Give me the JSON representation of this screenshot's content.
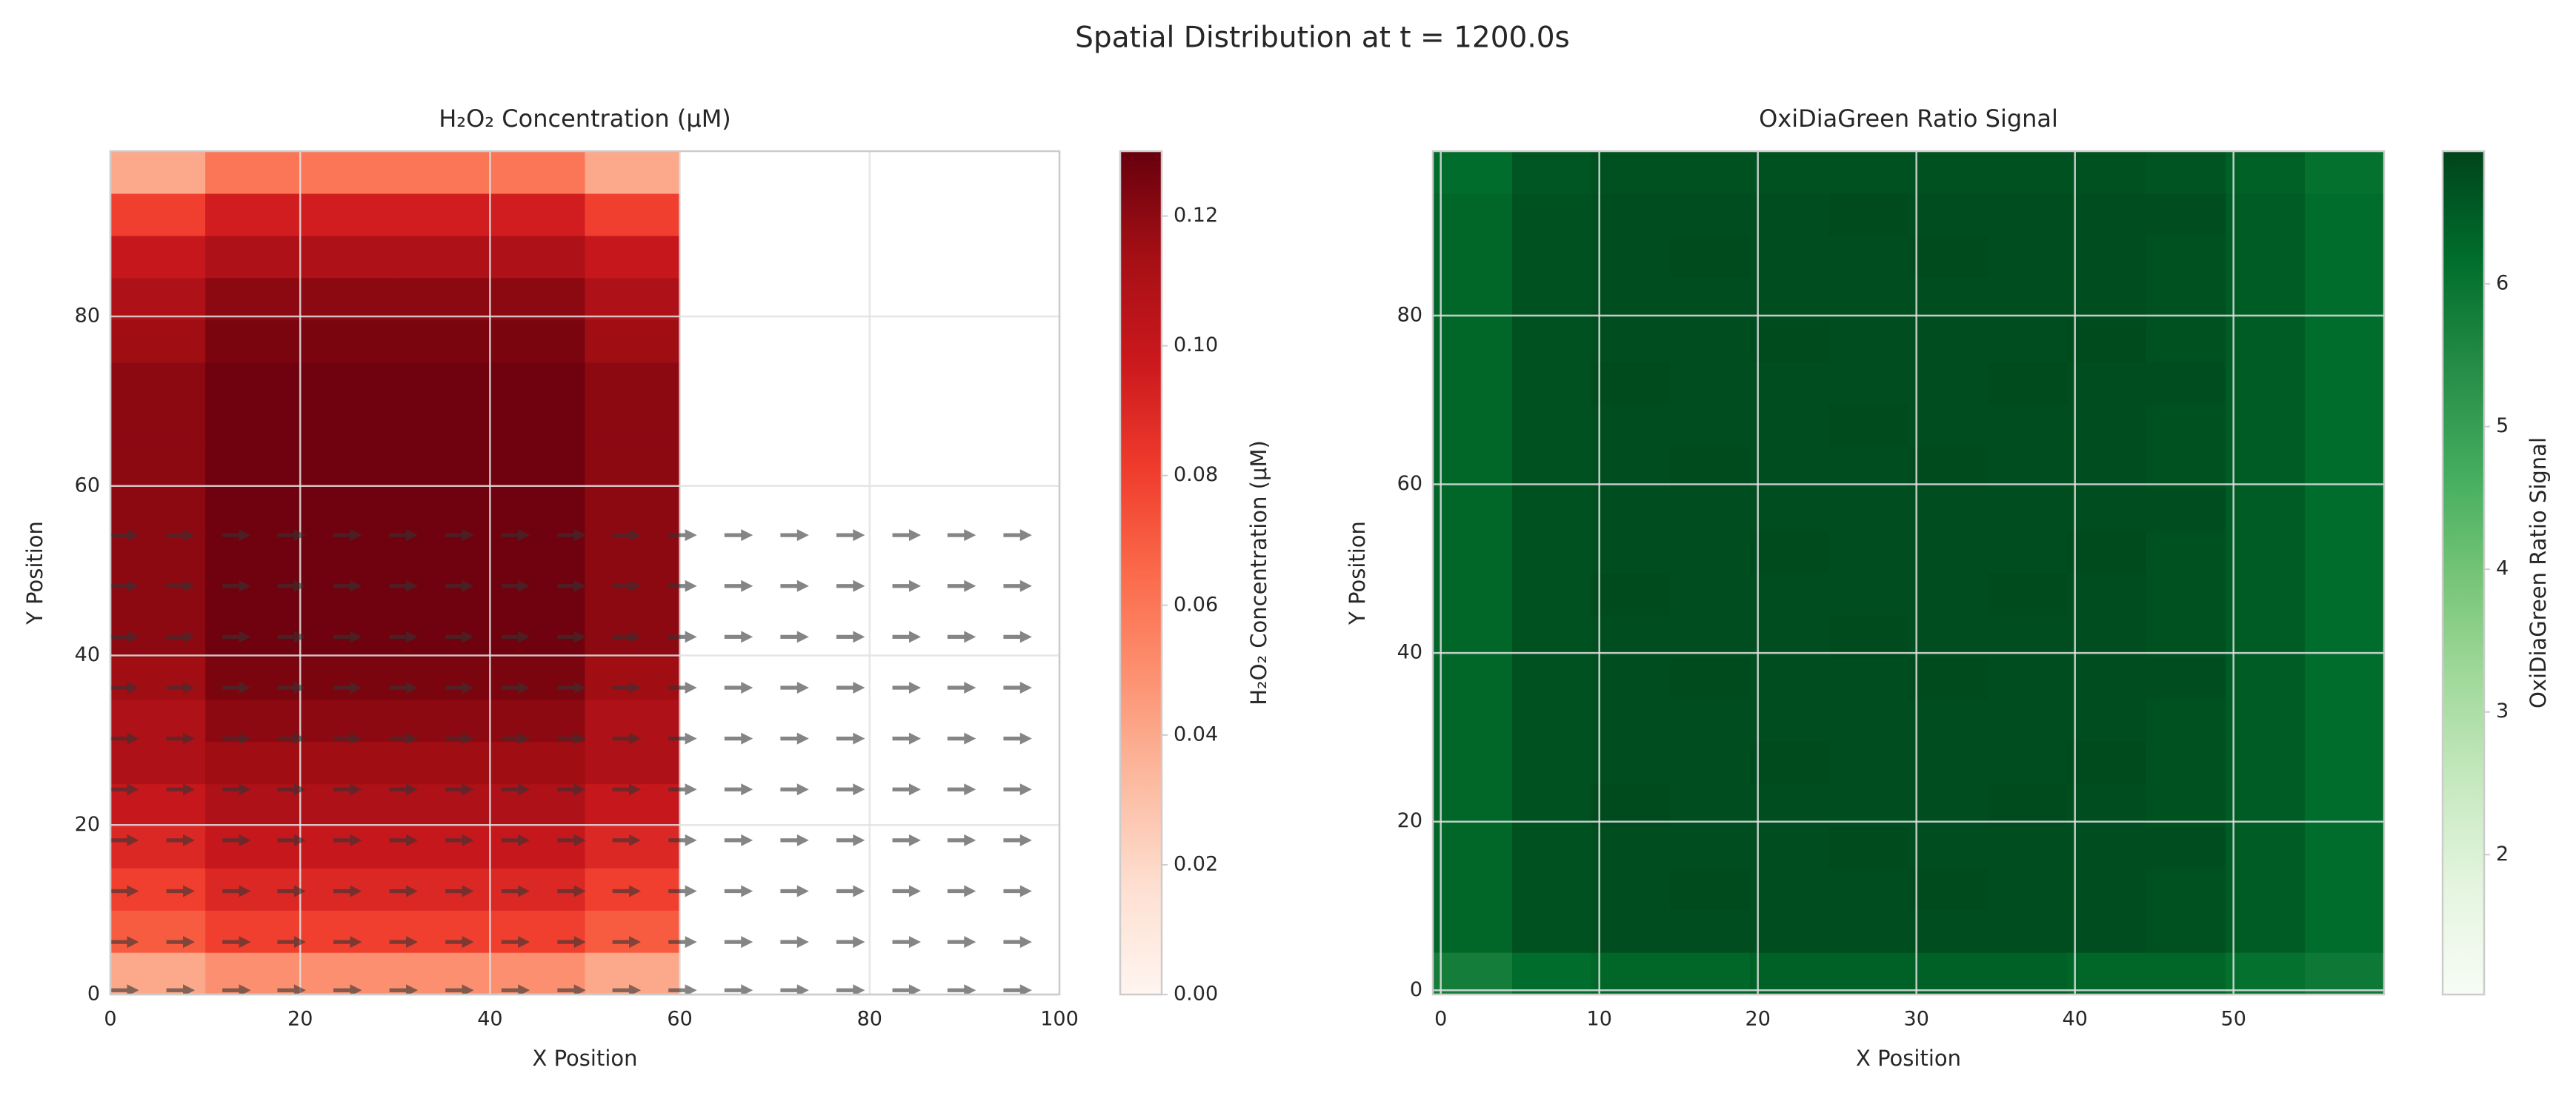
{
  "title": "Spatial Distribution at t = 1200.0s",
  "chart_data": [
    {
      "type": "heatmap",
      "title": "H₂O₂ Concentration (μM)",
      "xlabel": "X Position",
      "ylabel": "Y Position",
      "xlim": [
        0,
        100
      ],
      "ylim": [
        0,
        99.5
      ],
      "xticks": [
        0,
        20,
        40,
        60,
        80,
        100
      ],
      "yticks": [
        0,
        20,
        40,
        60,
        80
      ],
      "grid": true,
      "extent": [
        0,
        60,
        0,
        99.5
      ],
      "values": [
        [
          0.04,
          0.05,
          0.05,
          0.05,
          0.05,
          0.04
        ],
        [
          0.07,
          0.08,
          0.08,
          0.08,
          0.08,
          0.07
        ],
        [
          0.08,
          0.09,
          0.09,
          0.09,
          0.09,
          0.08
        ],
        [
          0.09,
          0.1,
          0.1,
          0.1,
          0.1,
          0.09
        ],
        [
          0.1,
          0.11,
          0.11,
          0.11,
          0.11,
          0.1
        ],
        [
          0.11,
          0.115,
          0.115,
          0.115,
          0.115,
          0.11
        ],
        [
          0.11,
          0.12,
          0.12,
          0.12,
          0.12,
          0.11
        ],
        [
          0.115,
          0.125,
          0.125,
          0.125,
          0.125,
          0.115
        ],
        [
          0.12,
          0.128,
          0.128,
          0.128,
          0.128,
          0.12
        ],
        [
          0.12,
          0.128,
          0.128,
          0.128,
          0.128,
          0.12
        ],
        [
          0.12,
          0.128,
          0.128,
          0.128,
          0.128,
          0.12
        ],
        [
          0.12,
          0.128,
          0.128,
          0.128,
          0.128,
          0.12
        ],
        [
          0.12,
          0.128,
          0.128,
          0.128,
          0.128,
          0.12
        ],
        [
          0.12,
          0.128,
          0.128,
          0.128,
          0.128,
          0.12
        ],
        [
          0.12,
          0.128,
          0.128,
          0.128,
          0.128,
          0.12
        ],
        [
          0.115,
          0.125,
          0.125,
          0.125,
          0.125,
          0.115
        ],
        [
          0.11,
          0.12,
          0.12,
          0.12,
          0.12,
          0.11
        ],
        [
          0.1,
          0.11,
          0.11,
          0.11,
          0.11,
          0.1
        ],
        [
          0.08,
          0.095,
          0.095,
          0.095,
          0.095,
          0.08
        ],
        [
          0.04,
          0.06,
          0.06,
          0.06,
          0.06,
          0.04
        ]
      ],
      "colormap": [
        "#fff5f0",
        "#fee0d2",
        "#fcbba1",
        "#fc9272",
        "#fb6a4a",
        "#ef3b2c",
        "#cb181d",
        "#a50f15",
        "#67000d"
      ],
      "clim": [
        0,
        0.13
      ],
      "colorbar": {
        "label": "H₂O₂ Concentration (μM)",
        "ticks": [
          {
            "value": 0,
            "label": "0.00"
          },
          0.02,
          0.04,
          0.06,
          0.08,
          {
            "value": 0.1,
            "label": "0.10"
          },
          0.12
        ]
      },
      "quiver": {
        "x": [
          0,
          5.9,
          11.8,
          17.6,
          23.5,
          29.4,
          35.3,
          41.2,
          47.1,
          52.9,
          58.8,
          64.7,
          70.6,
          76.5,
          82.4,
          88.2,
          94.1
        ],
        "y": [
          0.5,
          6.2,
          12.2,
          18.2,
          24.2,
          30.2,
          36.2,
          42.2,
          48.2,
          54.2
        ],
        "u": 3,
        "color": "#333333",
        "alpha": 0.6
      }
    },
    {
      "type": "heatmap",
      "title": "OxiDiaGreen Ratio Signal",
      "xlabel": "X Position",
      "ylabel": "Y Position",
      "xlim": [
        -0.5,
        59.5
      ],
      "ylim": [
        -0.5,
        99.5
      ],
      "xticks": [
        0,
        10,
        20,
        30,
        40,
        50
      ],
      "yticks": [
        0,
        20,
        40,
        60,
        80
      ],
      "grid": true,
      "extent": [
        -0.5,
        59.5,
        -0.5,
        99.5
      ],
      "values": [
        [
          5.8,
          6.2,
          6.3,
          6.3,
          6.4,
          6.4,
          6.4,
          6.4,
          6.3,
          6.3,
          6.1,
          5.9
        ],
        [
          6.3,
          6.7,
          6.75,
          6.75,
          6.75,
          6.75,
          6.75,
          6.75,
          6.75,
          6.7,
          6.5,
          6.2
        ],
        [
          6.3,
          6.7,
          6.75,
          6.8,
          6.75,
          6.75,
          6.8,
          6.75,
          6.75,
          6.7,
          6.5,
          6.2
        ],
        [
          6.3,
          6.7,
          6.75,
          6.75,
          6.75,
          6.8,
          6.75,
          6.75,
          6.75,
          6.75,
          6.5,
          6.2
        ],
        [
          6.3,
          6.7,
          6.8,
          6.75,
          6.75,
          6.75,
          6.75,
          6.8,
          6.75,
          6.7,
          6.5,
          6.2
        ],
        [
          6.3,
          6.7,
          6.75,
          6.75,
          6.8,
          6.75,
          6.75,
          6.75,
          6.8,
          6.7,
          6.5,
          6.2
        ],
        [
          6.3,
          6.7,
          6.75,
          6.75,
          6.75,
          6.75,
          6.75,
          6.75,
          6.75,
          6.7,
          6.5,
          6.2
        ],
        [
          6.3,
          6.7,
          6.75,
          6.8,
          6.75,
          6.75,
          6.8,
          6.75,
          6.75,
          6.75,
          6.5,
          6.2
        ],
        [
          6.3,
          6.7,
          6.75,
          6.75,
          6.75,
          6.8,
          6.75,
          6.75,
          6.75,
          6.7,
          6.5,
          6.2
        ],
        [
          6.3,
          6.7,
          6.8,
          6.75,
          6.75,
          6.75,
          6.75,
          6.8,
          6.75,
          6.7,
          6.5,
          6.2
        ],
        [
          6.3,
          6.7,
          6.75,
          6.75,
          6.8,
          6.75,
          6.75,
          6.75,
          6.8,
          6.7,
          6.5,
          6.2
        ],
        [
          6.3,
          6.7,
          6.75,
          6.75,
          6.75,
          6.75,
          6.75,
          6.75,
          6.75,
          6.75,
          6.5,
          6.2
        ],
        [
          6.3,
          6.7,
          6.75,
          6.8,
          6.75,
          6.75,
          6.8,
          6.75,
          6.75,
          6.7,
          6.5,
          6.2
        ],
        [
          6.3,
          6.7,
          6.75,
          6.75,
          6.75,
          6.8,
          6.75,
          6.75,
          6.75,
          6.7,
          6.5,
          6.2
        ],
        [
          6.3,
          6.7,
          6.8,
          6.75,
          6.75,
          6.75,
          6.75,
          6.8,
          6.75,
          6.75,
          6.5,
          6.2
        ],
        [
          6.3,
          6.7,
          6.75,
          6.75,
          6.8,
          6.75,
          6.75,
          6.75,
          6.8,
          6.7,
          6.5,
          6.2
        ],
        [
          6.3,
          6.7,
          6.75,
          6.75,
          6.75,
          6.75,
          6.75,
          6.75,
          6.75,
          6.7,
          6.5,
          6.2
        ],
        [
          6.3,
          6.7,
          6.75,
          6.8,
          6.75,
          6.75,
          6.8,
          6.75,
          6.75,
          6.7,
          6.5,
          6.2
        ],
        [
          6.3,
          6.7,
          6.75,
          6.75,
          6.75,
          6.8,
          6.75,
          6.75,
          6.75,
          6.75,
          6.5,
          6.2
        ],
        [
          6.2,
          6.6,
          6.7,
          6.7,
          6.7,
          6.7,
          6.7,
          6.7,
          6.7,
          6.65,
          6.4,
          6.1
        ]
      ],
      "colormap": [
        "#f7fcf5",
        "#e5f5e0",
        "#c7e9c0",
        "#a1d99b",
        "#74c476",
        "#41ab5d",
        "#238b45",
        "#006d2c",
        "#00441b"
      ],
      "clim": [
        1.02,
        6.93
      ],
      "colorbar": {
        "label": "OxiDiaGreen Ratio Signal",
        "ticks": [
          2,
          3,
          4,
          5,
          6
        ]
      }
    }
  ]
}
